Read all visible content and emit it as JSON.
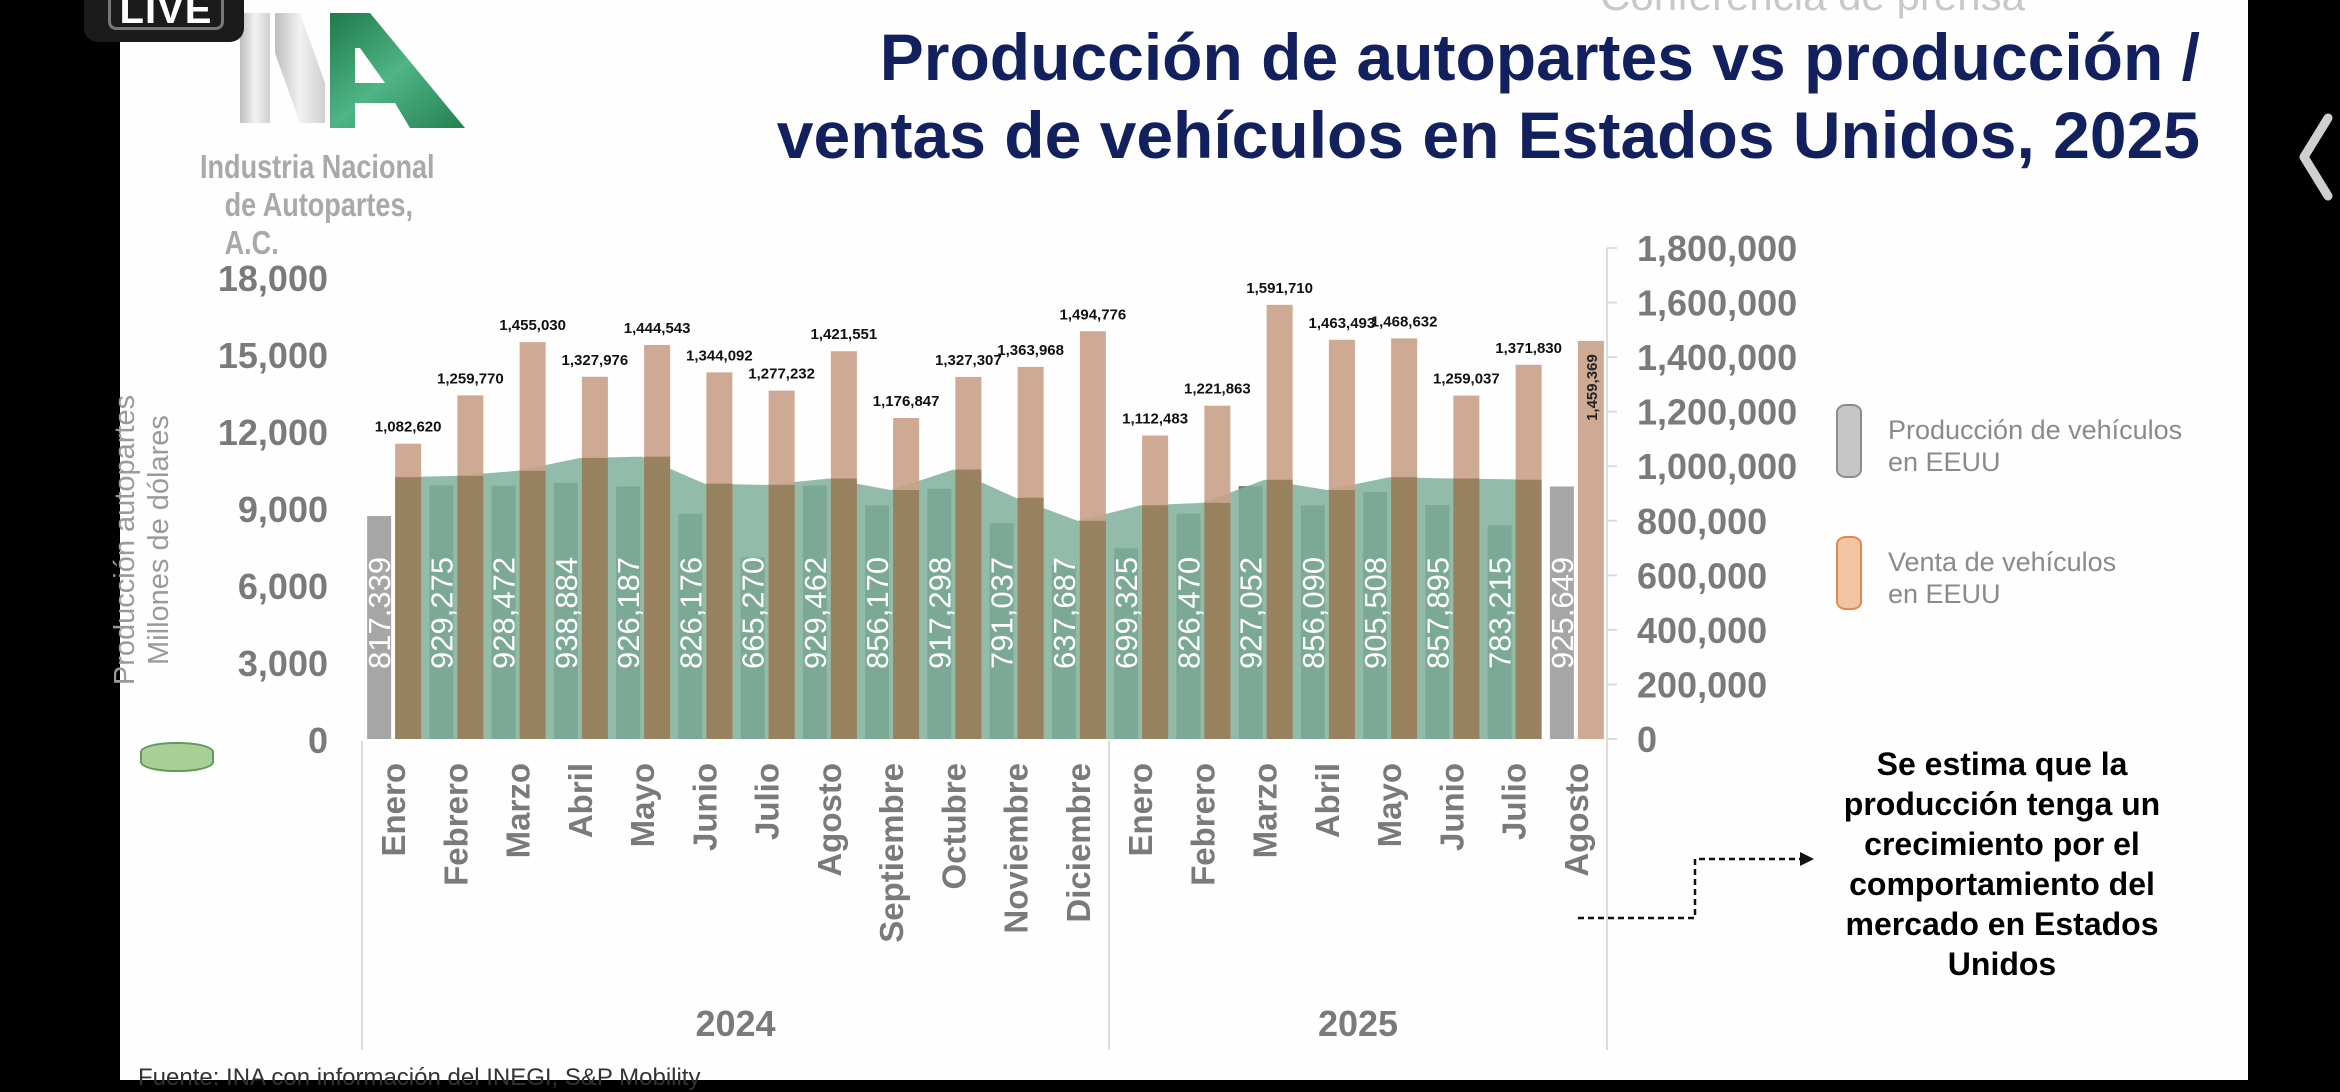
{
  "overlay": {
    "live_label": "LIVE"
  },
  "header": {
    "subtitle": "Conferencia de prensa",
    "title_line1": "Producción de autopartes vs producción /",
    "title_line2": "ventas de vehículos en Estados Unidos, 2025"
  },
  "logo": {
    "line1": "Industria Nacional",
    "line2": "de Autopartes, A.C.",
    "colors": {
      "green": "#2e8b57",
      "gray": "#c9c9c9"
    }
  },
  "legend": {
    "production_label_line1": "Producción de vehículos",
    "production_label_line2": "en EEUU",
    "sales_label_line1": "Venta de vehículos",
    "sales_label_line2": "en EEUU",
    "production_color": "#6f7d77",
    "production_color_projected": "#a6a6a6",
    "sales_color": "#c9a088",
    "autopartes_color": "#7fb09a"
  },
  "note": {
    "text": "Se estima que la producción tenga un crecimiento por el comportamiento del mercado en Estados Unidos"
  },
  "footer": {
    "source": "Fuente: INA con información del INEGI, S&P Mobility"
  },
  "chart_data": {
    "type": "bar",
    "title": "Producción de autopartes vs producción / ventas de vehículos en Estados Unidos, 2025",
    "categories": [
      "Enero",
      "Febrero",
      "Marzo",
      "Abril",
      "Mayo",
      "Junio",
      "Julio",
      "Agosto",
      "Septiembre",
      "Octubre",
      "Noviembre",
      "Diciembre",
      "Enero",
      "Febrero",
      "Marzo",
      "Abril",
      "Mayo",
      "Junio",
      "Julio",
      "Agosto"
    ],
    "groups": [
      {
        "label": "2024",
        "count": 12
      },
      {
        "label": "2025",
        "count": 8
      }
    ],
    "left_axis": {
      "label_line1": "Producción autopartes",
      "label_line2": "Millones de dólares",
      "range": [
        0,
        18000
      ],
      "ticks": [
        "0",
        "3,000",
        "6,000",
        "9,000",
        "12,000",
        "15,000",
        "18,000"
      ]
    },
    "right_axis": {
      "range": [
        0,
        1800000
      ],
      "ticks": [
        "0",
        "200,000",
        "400,000",
        "600,000",
        "800,000",
        "1,000,000",
        "1,200,000",
        "1,400,000",
        "1,600,000",
        "1,800,000"
      ]
    },
    "series": [
      {
        "name": "Producción autopartes (Millones de dólares)",
        "type": "area",
        "axis": "left",
        "values": [
          10200,
          10250,
          10450,
          10950,
          11000,
          9950,
          9900,
          10150,
          9700,
          10500,
          9400,
          8500,
          9100,
          9200,
          10100,
          9700,
          10200,
          10150,
          10100,
          null
        ]
      },
      {
        "name": "Producción de vehículos en EEUU",
        "type": "bar",
        "axis": "right",
        "values": [
          817339,
          929275,
          928472,
          938884,
          926187,
          826176,
          665270,
          929462,
          856170,
          917298,
          791037,
          637687,
          699325,
          826470,
          927052,
          856090,
          905508,
          857895,
          783215,
          925649
        ],
        "labels": [
          "817,339",
          "929,275",
          "928,472",
          "938,884",
          "926,187",
          "826,176",
          "665,270",
          "929,462",
          "856,170",
          "917,298",
          "791,037",
          "637,687",
          "699,325",
          "826,470",
          "927,052",
          "856,090",
          "905,508",
          "857,895",
          "783,215",
          "925,649"
        ],
        "projected": [
          true,
          false,
          false,
          false,
          false,
          false,
          false,
          false,
          false,
          false,
          false,
          false,
          false,
          false,
          false,
          false,
          false,
          false,
          false,
          true
        ]
      },
      {
        "name": "Venta de vehículos en EEUU",
        "type": "bar",
        "axis": "right",
        "values": [
          1082620,
          1259770,
          1455030,
          1327976,
          1444543,
          1344092,
          1277232,
          1421551,
          1176847,
          1327307,
          1363968,
          1494776,
          1112483,
          1221863,
          1591710,
          1463493,
          1468632,
          1259037,
          1371830,
          1459369
        ],
        "labels": [
          "1,082,620",
          "1,259,770",
          "1,455,030",
          "1,327,976",
          "1,444,543",
          "1,344,092",
          "1,277,232",
          "1,421,551",
          "1,176,847",
          "1,327,307",
          "1,363,968",
          "1,494,776",
          "1,112,483",
          "1,221,863",
          "1,591,710",
          "1,463,493",
          "1,468,632",
          "1,259,037",
          "1,371,830",
          "1,459,369"
        ]
      }
    ],
    "grid": false,
    "legend_position": "right"
  }
}
